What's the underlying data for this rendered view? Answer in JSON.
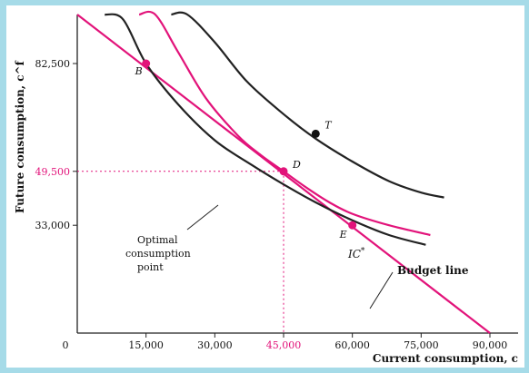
{
  "chart_data": {
    "type": "line",
    "xlabel": "Current consumption, c",
    "ylabel": "Future consumption, c^f",
    "xlim": [
      0,
      105000
    ],
    "ylim": [
      0,
      115000
    ],
    "x_ticks": [
      {
        "label": "0",
        "value": 0
      },
      {
        "label": "15,000",
        "value": 15000
      },
      {
        "label": "30,000",
        "value": 30000
      },
      {
        "label": "45,000",
        "value": 45000,
        "highlight": true
      },
      {
        "label": "60,000",
        "value": 60000
      },
      {
        "label": "75,000",
        "value": 75000
      },
      {
        "label": "90,000",
        "value": 90000
      }
    ],
    "y_ticks": [
      {
        "label": "82,500",
        "value": 82500
      },
      {
        "label": "49,500",
        "value": 49500,
        "highlight": true
      },
      {
        "label": "33,000",
        "value": 33000
      }
    ],
    "series": [
      {
        "key": "budget",
        "name": "Budget line",
        "color": "#e2137a",
        "points": [
          [
            0,
            99000
          ],
          [
            90000,
            0
          ]
        ]
      },
      {
        "key": "ic_low",
        "color": "#222222",
        "points": [
          [
            6000,
            114000
          ],
          [
            10000,
            96000
          ],
          [
            15000,
            82500
          ],
          [
            22000,
            70000
          ],
          [
            30000,
            59000
          ],
          [
            38000,
            51500
          ],
          [
            45000,
            45500
          ],
          [
            52000,
            40000
          ],
          [
            60000,
            34500
          ],
          [
            68000,
            30000
          ],
          [
            76000,
            27000
          ]
        ]
      },
      {
        "key": "ic_star",
        "name": "IC*",
        "color": "#e2137a",
        "points": [
          [
            13500,
            114000
          ],
          [
            17000,
            101000
          ],
          [
            22000,
            86000
          ],
          [
            28000,
            72000
          ],
          [
            35000,
            60500
          ],
          [
            40000,
            54500
          ],
          [
            45000,
            49500
          ],
          [
            50000,
            44500
          ],
          [
            55000,
            40000
          ],
          [
            60000,
            36500
          ],
          [
            68000,
            33000
          ],
          [
            77000,
            30000
          ]
        ]
      },
      {
        "key": "ic_high",
        "color": "#222222",
        "points": [
          [
            20500,
            114000
          ],
          [
            24000,
            102000
          ],
          [
            30000,
            89000
          ],
          [
            37000,
            77000
          ],
          [
            45000,
            67000
          ],
          [
            52000,
            59500
          ],
          [
            60000,
            52500
          ],
          [
            68000,
            46500
          ],
          [
            75000,
            43000
          ],
          [
            80000,
            41500
          ]
        ]
      }
    ],
    "points": [
      {
        "label": "B",
        "x": 15000,
        "y": 82500,
        "color": "#e2137a"
      },
      {
        "label": "D",
        "x": 45000,
        "y": 49500,
        "color": "#e2137a"
      },
      {
        "label": "E",
        "x": 60000,
        "y": 33000,
        "color": "#e2137a"
      },
      {
        "label": "T",
        "x": 52000,
        "y": 61000,
        "color": "#111111"
      }
    ],
    "annotations": {
      "optimal_line1": "Optimal",
      "optimal_line2": "consumption",
      "optimal_line3": "point",
      "ic_star_base": "IC",
      "ic_star_sup": "*",
      "budget_line": "Budget line"
    },
    "grid": false
  }
}
